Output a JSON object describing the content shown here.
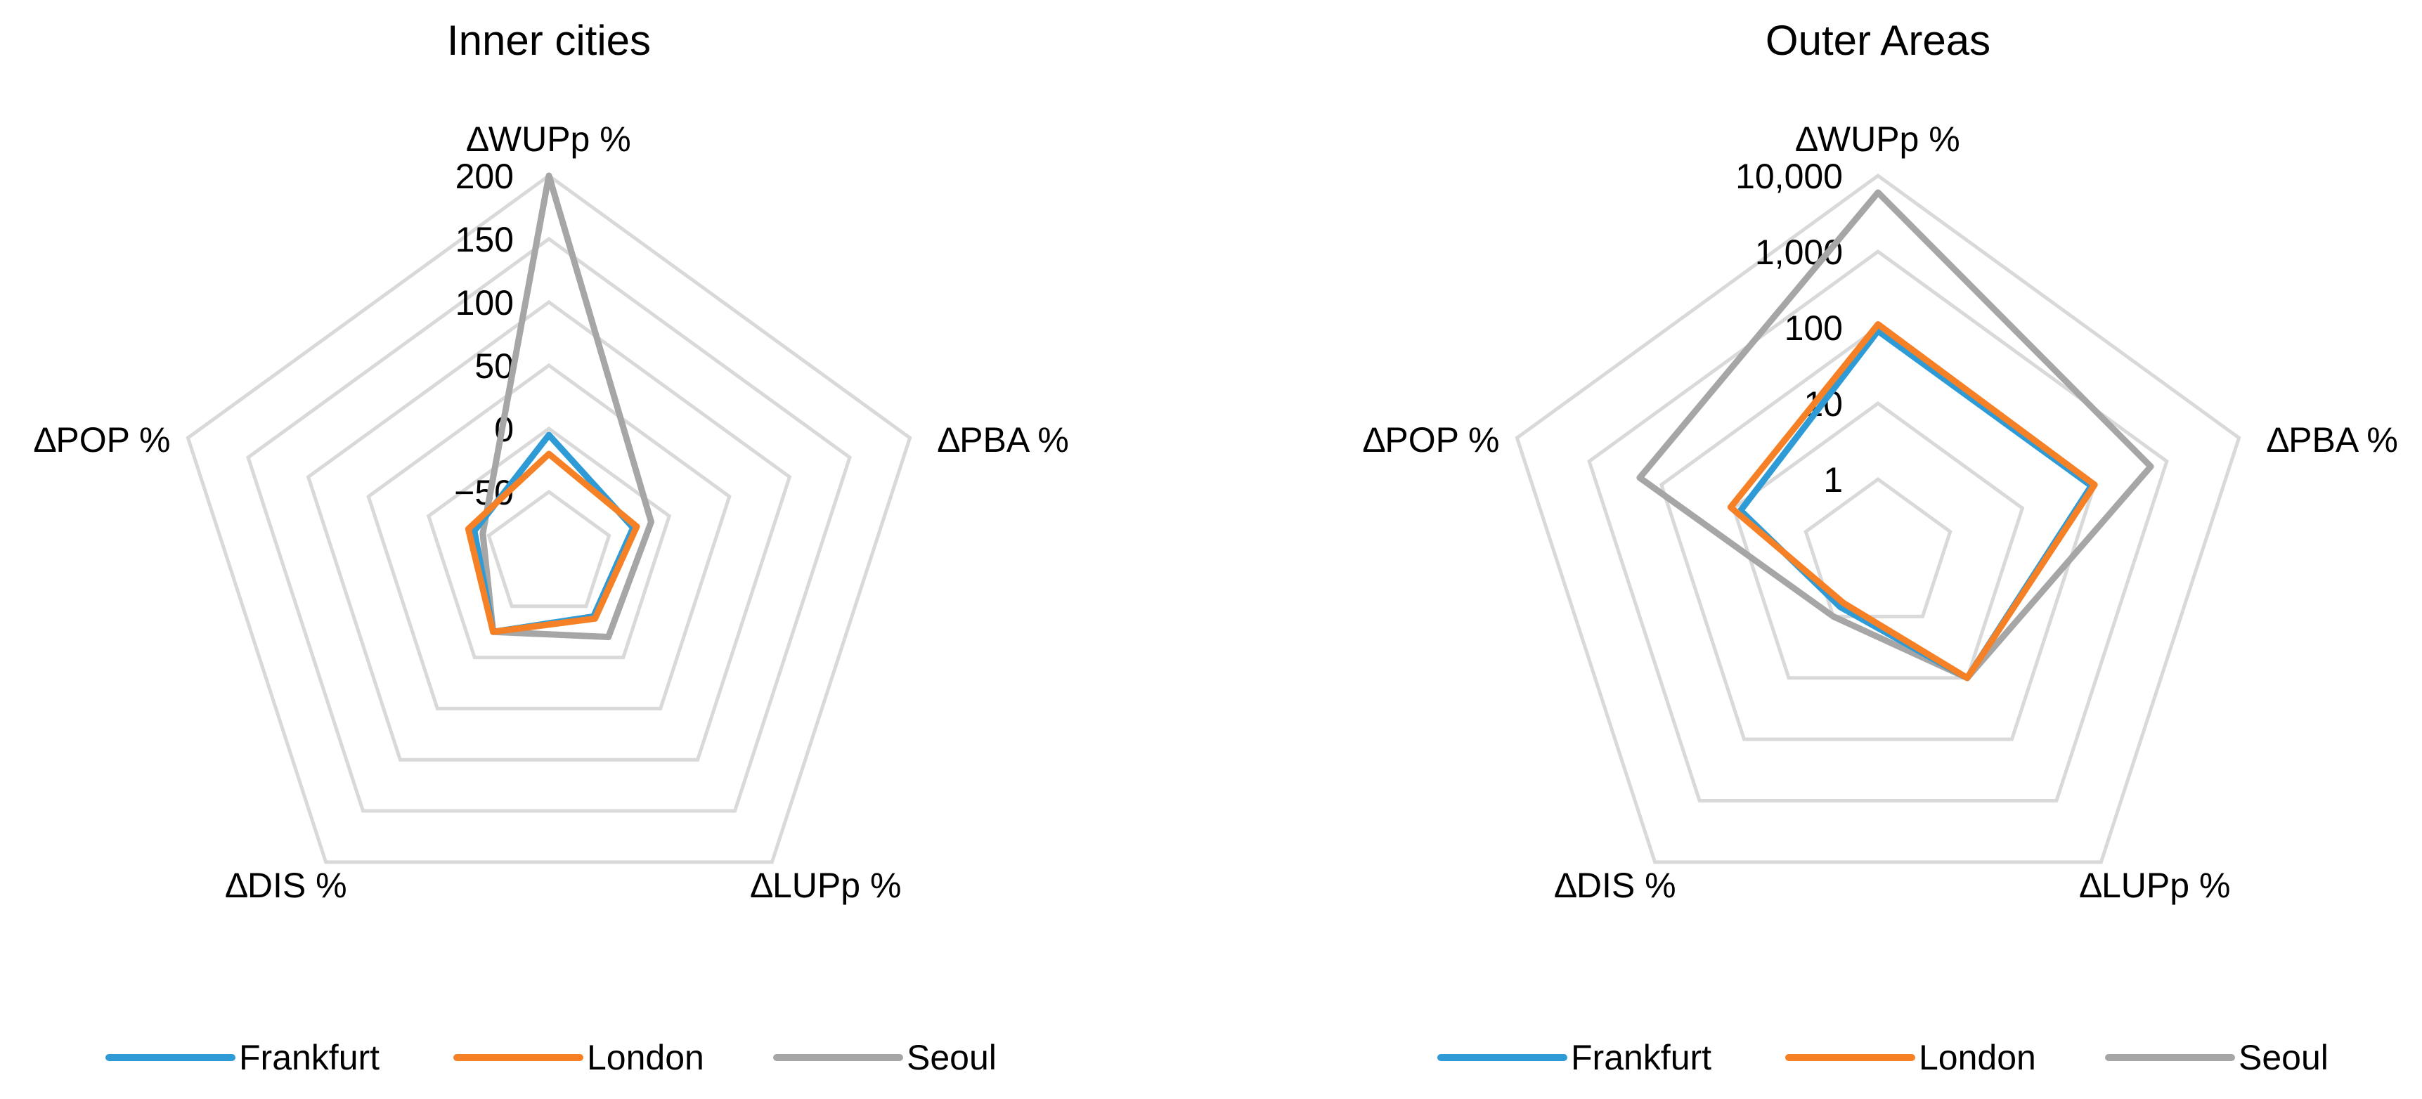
{
  "chart_data": [
    {
      "type": "radar",
      "title": "Inner cities",
      "axes": [
        "∆WUPp %",
        "∆PBA %",
        "∆LUPp %",
        "∆DIS %",
        "∆POP %"
      ],
      "scale": "linear",
      "range": [
        -100,
        200
      ],
      "ticks": [
        "200",
        "150",
        "100",
        "50",
        "0",
        "-50"
      ],
      "grid": true,
      "legend": "bottom",
      "series": [
        {
          "name": "Frankfurt",
          "color": "#2E9BD6",
          "values": [
            -5,
            -30,
            -40,
            -25,
            -38
          ]
        },
        {
          "name": "London",
          "color": "#F58025",
          "values": [
            -20,
            -27,
            -38,
            -25,
            -33
          ]
        },
        {
          "name": "Seoul",
          "color": "#A6A6A6",
          "values": [
            200,
            -15,
            -20,
            -25,
            -45
          ]
        }
      ]
    },
    {
      "type": "radar",
      "title": "Outer Areas",
      "axes": [
        "∆WUPp %",
        "∆PBA %",
        "∆LUPp %",
        "∆DIS %",
        "∆POP %"
      ],
      "scale": "log",
      "range": [
        0.1,
        10000
      ],
      "ticks": [
        "10,000",
        "1,000",
        "100",
        "10",
        "1"
      ],
      "grid": true,
      "legend": "bottom",
      "series": [
        {
          "name": "Frankfurt",
          "color": "#2E9BD6",
          "values": [
            90,
            90,
            10,
            0.7,
            8
          ]
        },
        {
          "name": "London",
          "color": "#F58025",
          "values": [
            110,
            100,
            10,
            0.6,
            11
          ]
        },
        {
          "name": "Seoul",
          "color": "#A6A6A6",
          "values": [
            6000,
            600,
            10,
            1,
            200
          ]
        }
      ]
    }
  ]
}
